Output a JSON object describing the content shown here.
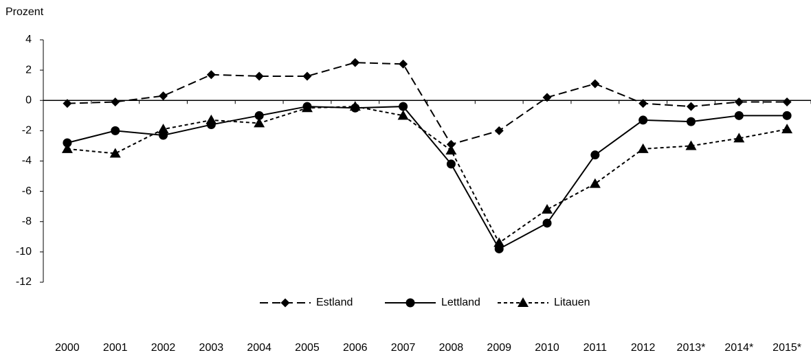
{
  "chart_data": {
    "type": "line",
    "y_label": "Prozent",
    "categories": [
      "2000",
      "2001",
      "2002",
      "2003",
      "2004",
      "2005",
      "2006",
      "2007",
      "2008",
      "2009",
      "2010",
      "2011",
      "2012",
      "2013*",
      "2014*",
      "2015*"
    ],
    "series": [
      {
        "name": "Estland",
        "color": "#000000",
        "marker": "diamond",
        "dash": "12 6",
        "values": [
          -0.2,
          -0.1,
          0.3,
          1.7,
          1.6,
          1.6,
          2.5,
          2.4,
          -2.9,
          -2.0,
          0.2,
          1.1,
          -0.2,
          -0.4,
          -0.1,
          -0.1
        ]
      },
      {
        "name": "Lettland",
        "color": "#000000",
        "marker": "circle",
        "dash": "none",
        "values": [
          -2.8,
          -2.0,
          -2.3,
          -1.6,
          -1.0,
          -0.4,
          -0.5,
          -0.4,
          -4.2,
          -9.8,
          -8.1,
          -3.6,
          -1.3,
          -1.4,
          -1.0,
          -1.0
        ]
      },
      {
        "name": "Litauen",
        "color": "#000000",
        "marker": "triangle",
        "dash": "5 4",
        "values": [
          -3.2,
          -3.5,
          -1.9,
          -1.3,
          -1.5,
          -0.5,
          -0.4,
          -1.0,
          -3.3,
          -9.4,
          -7.2,
          -5.5,
          -3.2,
          -3.0,
          -2.5,
          -1.9
        ]
      }
    ],
    "ylim": [
      -12,
      4
    ],
    "yticks": [
      -12,
      -10,
      -8,
      -6,
      -4,
      -2,
      0,
      2,
      4
    ],
    "legend": "bottom"
  }
}
